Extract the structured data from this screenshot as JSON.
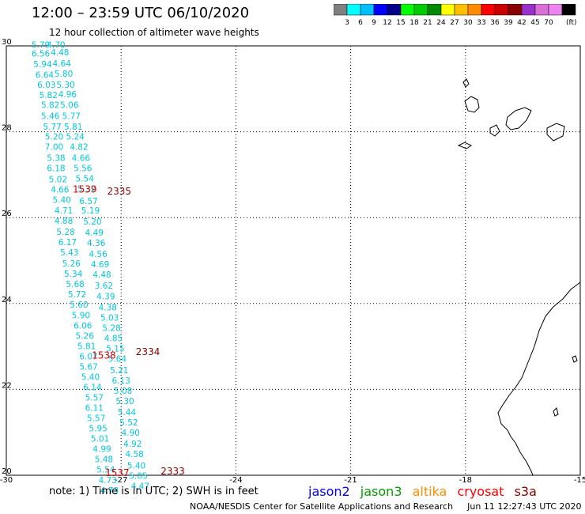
{
  "header": {
    "title": "12:00 – 23:59 UTC 06/10/2020",
    "subtitle": "12 hour collection of altimeter wave heights"
  },
  "color_scale": {
    "unit": "(ft)",
    "colors": [
      "#808080",
      "#00ffff",
      "#00bfff",
      "#0000ff",
      "#00008b",
      "#00ff00",
      "#00cd00",
      "#008b00",
      "#ffff00",
      "#ffbf00",
      "#ff8c00",
      "#ff0000",
      "#cd0000",
      "#8b0000",
      "#9932cc",
      "#da70d6",
      "#ee82ee",
      "#000000"
    ],
    "labels": [
      "3",
      "6",
      "9",
      "12",
      "15",
      "18",
      "21",
      "24",
      "27",
      "30",
      "33",
      "36",
      "39",
      "42",
      "45",
      "70"
    ]
  },
  "map": {
    "lon_min": -30,
    "lon_max": -15,
    "lat_min": 20,
    "lat_max": 30,
    "x_ticks": [
      "-30",
      "-27",
      "-24",
      "-21",
      "-18",
      "-15"
    ],
    "y_ticks": [
      "30",
      "28",
      "26",
      "24",
      "22",
      "20"
    ],
    "wave_color": "#00c8e0",
    "label_colors": {
      "cryosat": "#e00000",
      "s3a": "#8b0000"
    }
  },
  "track_a": [
    {
      "lon": -29.1,
      "lat": 29.95,
      "v": "5.79"
    },
    {
      "lon": -28.7,
      "lat": 29.95,
      "v": "4.70"
    },
    {
      "lon": -29.1,
      "lat": 29.75,
      "v": "6.56"
    },
    {
      "lon": -28.6,
      "lat": 29.78,
      "v": "4.48"
    },
    {
      "lon": -29.05,
      "lat": 29.5,
      "v": "5.94"
    },
    {
      "lon": -28.55,
      "lat": 29.52,
      "v": "4.64"
    },
    {
      "lon": -29.0,
      "lat": 29.25,
      "v": "6.64"
    },
    {
      "lon": -28.5,
      "lat": 29.28,
      "v": "5.80"
    },
    {
      "lon": -28.95,
      "lat": 29.02,
      "v": "6.03"
    },
    {
      "lon": -28.45,
      "lat": 29.02,
      "v": "5.30"
    },
    {
      "lon": -28.9,
      "lat": 28.78,
      "v": "5.82"
    },
    {
      "lon": -28.4,
      "lat": 28.8,
      "v": "4.96"
    },
    {
      "lon": -28.85,
      "lat": 28.55,
      "v": "5.82"
    },
    {
      "lon": -28.35,
      "lat": 28.55,
      "v": "5.06"
    },
    {
      "lon": -28.85,
      "lat": 28.3,
      "v": "5.46"
    },
    {
      "lon": -28.3,
      "lat": 28.3,
      "v": "5.77"
    },
    {
      "lon": -28.8,
      "lat": 28.05,
      "v": "5.77"
    },
    {
      "lon": -28.25,
      "lat": 28.05,
      "v": "5.81"
    },
    {
      "lon": -28.75,
      "lat": 27.82,
      "v": "5.20"
    },
    {
      "lon": -28.2,
      "lat": 27.82,
      "v": "5.24"
    },
    {
      "lon": -28.75,
      "lat": 27.58,
      "v": "7.00"
    },
    {
      "lon": -28.1,
      "lat": 27.58,
      "v": "4.82"
    },
    {
      "lon": -28.7,
      "lat": 27.32,
      "v": "5.38"
    },
    {
      "lon": -28.05,
      "lat": 27.32,
      "v": "4.66"
    },
    {
      "lon": -28.7,
      "lat": 27.08,
      "v": "6.18"
    },
    {
      "lon": -28.0,
      "lat": 27.08,
      "v": "5.56"
    },
    {
      "lon": -28.65,
      "lat": 26.82,
      "v": "5.02"
    },
    {
      "lon": -27.95,
      "lat": 26.84,
      "v": "5.54"
    },
    {
      "lon": -28.6,
      "lat": 26.58,
      "v": "4.66"
    },
    {
      "lon": -27.9,
      "lat": 26.6,
      "v": "5.32"
    },
    {
      "lon": -28.55,
      "lat": 26.34,
      "v": "5.40"
    },
    {
      "lon": -27.85,
      "lat": 26.32,
      "v": "6.57"
    },
    {
      "lon": -28.5,
      "lat": 26.1,
      "v": "4.71"
    },
    {
      "lon": -27.8,
      "lat": 26.1,
      "v": "5.19"
    },
    {
      "lon": -28.5,
      "lat": 25.86,
      "v": "4.88"
    },
    {
      "lon": -27.75,
      "lat": 25.84,
      "v": "5.20"
    },
    {
      "lon": -28.45,
      "lat": 25.6,
      "v": "5.28"
    },
    {
      "lon": -27.7,
      "lat": 25.58,
      "v": "4.49"
    },
    {
      "lon": -28.4,
      "lat": 25.36,
      "v": "6.17"
    },
    {
      "lon": -27.65,
      "lat": 25.34,
      "v": "4.36"
    },
    {
      "lon": -28.35,
      "lat": 25.12,
      "v": "5.43"
    },
    {
      "lon": -27.6,
      "lat": 25.08,
      "v": "4.56"
    },
    {
      "lon": -28.3,
      "lat": 24.86,
      "v": "5.26"
    },
    {
      "lon": -27.55,
      "lat": 24.84,
      "v": "4.69"
    },
    {
      "lon": -28.25,
      "lat": 24.62,
      "v": "5.34"
    },
    {
      "lon": -27.5,
      "lat": 24.6,
      "v": "4.48"
    },
    {
      "lon": -28.2,
      "lat": 24.38,
      "v": "5.68"
    },
    {
      "lon": -27.45,
      "lat": 24.35,
      "v": "3.62"
    },
    {
      "lon": -28.15,
      "lat": 24.14,
      "v": "5.72"
    },
    {
      "lon": -27.4,
      "lat": 24.1,
      "v": "4.39"
    },
    {
      "lon": -28.1,
      "lat": 23.9,
      "v": "5.60"
    },
    {
      "lon": -27.35,
      "lat": 23.84,
      "v": "4.38"
    },
    {
      "lon": -28.05,
      "lat": 23.66,
      "v": "5.90"
    },
    {
      "lon": -27.3,
      "lat": 23.6,
      "v": "5.03"
    },
    {
      "lon": -28.0,
      "lat": 23.42,
      "v": "6.06"
    },
    {
      "lon": -27.25,
      "lat": 23.36,
      "v": "5.28"
    },
    {
      "lon": -27.95,
      "lat": 23.18,
      "v": "5.26"
    },
    {
      "lon": -27.2,
      "lat": 23.12,
      "v": "4.85"
    },
    {
      "lon": -27.9,
      "lat": 22.94,
      "v": "5.81"
    },
    {
      "lon": -27.15,
      "lat": 22.88,
      "v": "5.15"
    },
    {
      "lon": -27.85,
      "lat": 22.7,
      "v": "6.07"
    },
    {
      "lon": -27.1,
      "lat": 22.64,
      "v": "5.64"
    },
    {
      "lon": -27.85,
      "lat": 22.46,
      "v": "5.67"
    },
    {
      "lon": -27.05,
      "lat": 22.38,
      "v": "5.21"
    },
    {
      "lon": -27.8,
      "lat": 22.22,
      "v": "5.40"
    },
    {
      "lon": -27.0,
      "lat": 22.14,
      "v": "6.13"
    },
    {
      "lon": -27.75,
      "lat": 21.98,
      "v": "6.14"
    },
    {
      "lon": -26.95,
      "lat": 21.9,
      "v": "5.08"
    },
    {
      "lon": -27.7,
      "lat": 21.74,
      "v": "5.57"
    },
    {
      "lon": -26.9,
      "lat": 21.66,
      "v": "5.30"
    },
    {
      "lon": -27.7,
      "lat": 21.5,
      "v": "6.11"
    },
    {
      "lon": -26.85,
      "lat": 21.4,
      "v": "5.44"
    },
    {
      "lon": -27.65,
      "lat": 21.26,
      "v": "5.57"
    },
    {
      "lon": -26.8,
      "lat": 21.16,
      "v": "5.52"
    },
    {
      "lon": -27.6,
      "lat": 21.02,
      "v": "5.95"
    },
    {
      "lon": -26.75,
      "lat": 20.92,
      "v": "4.90"
    },
    {
      "lon": -27.55,
      "lat": 20.78,
      "v": "5.01"
    },
    {
      "lon": -26.7,
      "lat": 20.66,
      "v": "4.92"
    },
    {
      "lon": -27.5,
      "lat": 20.54,
      "v": "4.99"
    },
    {
      "lon": -26.65,
      "lat": 20.42,
      "v": "4.58"
    },
    {
      "lon": -27.45,
      "lat": 20.3,
      "v": "5.48"
    },
    {
      "lon": -26.6,
      "lat": 20.16,
      "v": "5.40"
    },
    {
      "lon": -27.4,
      "lat": 20.06,
      "v": "5.54"
    },
    {
      "lon": -26.55,
      "lat": 19.92,
      "v": "5.05"
    },
    {
      "lon": -27.35,
      "lat": 19.82,
      "v": "4.73"
    },
    {
      "lon": -26.5,
      "lat": 19.68,
      "v": "4.47"
    },
    {
      "lon": -27.3,
      "lat": 19.58,
      "v": "4.73"
    }
  ],
  "pass_labels": [
    {
      "lon": -27.95,
      "lat": 26.58,
      "text": "1539",
      "sat": "cryosat"
    },
    {
      "lon": -27.05,
      "lat": 26.54,
      "text": "2335",
      "sat": "s3a"
    },
    {
      "lon": -27.45,
      "lat": 22.72,
      "text": "1538",
      "sat": "cryosat"
    },
    {
      "lon": -26.3,
      "lat": 22.8,
      "text": "2334",
      "sat": "s3a"
    },
    {
      "lon": -27.1,
      "lat": 19.98,
      "text": "1537",
      "sat": "cryosat"
    },
    {
      "lon": -25.65,
      "lat": 20.02,
      "text": "2333",
      "sat": "s3a"
    }
  ],
  "notes": {
    "note": "note:  1) Time is in UTC;  2) SWH is in feet",
    "footer": "NOAA/NESDIS Center for Satellite Applications and Research",
    "footer_time": "Jun 11 12:27:43 UTC 2020"
  },
  "legend": {
    "items": [
      {
        "label": "jason2",
        "color": "#0000ff"
      },
      {
        "label": "jason3",
        "color": "#00a000"
      },
      {
        "label": "altika",
        "color": "#ff8c00"
      },
      {
        "label": "cryosat",
        "color": "#ff0000"
      },
      {
        "label": "s3a",
        "color": "#8b0000"
      }
    ]
  }
}
